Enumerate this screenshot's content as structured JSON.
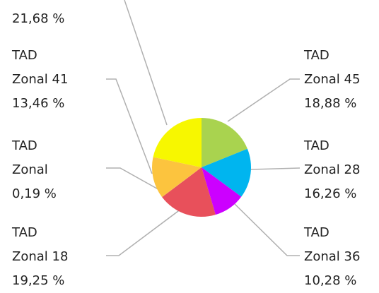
{
  "chart_data": {
    "type": "pie",
    "categories": [
      "TAD\nZonal 45",
      "TAD\nZonal 28",
      "TAD\nZonal 36",
      "TAD\nZonal 18",
      "TAD\nZonal",
      "TAD\nZonal 41",
      null
    ],
    "values": [
      18.88,
      16.26,
      10.28,
      19.25,
      0.19,
      13.46,
      21.68
    ],
    "value_labels": [
      "18,88 %",
      "16,26 %",
      "10,28 %",
      "19,25 %",
      "0,19 %",
      "13,46 %",
      "21,68 %"
    ],
    "colors": [
      "#a9d34f",
      "#00b5ef",
      "#cc00ff",
      "#e8505b",
      "#f4a93c",
      "#fcc43e",
      "#f7f700"
    ]
  }
}
